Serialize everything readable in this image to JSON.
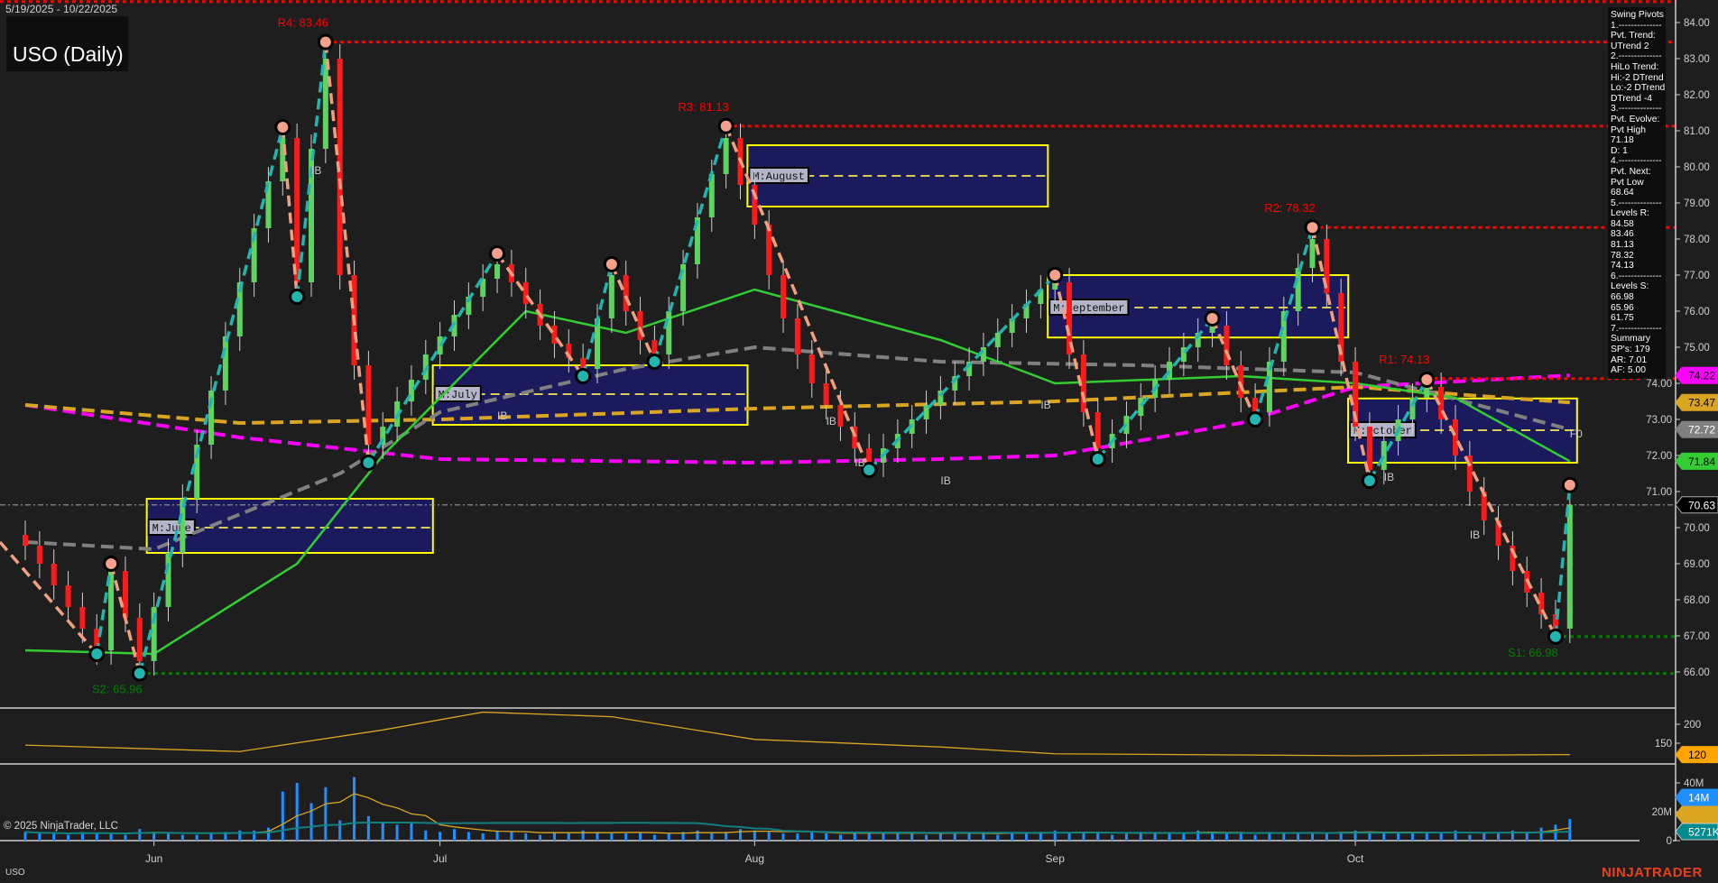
{
  "header": {
    "date_range": "5/19/2025 - 10/22/2025",
    "title": "USO (Daily)"
  },
  "footer": {
    "copyright": "© 2025 NinjaTrader, LLC",
    "symbol": "USO",
    "logo": "NINJATRADER"
  },
  "info_panel": {
    "lines": [
      "Swing Pivots",
      "1.--------------",
      "Pvt. Trend:",
      "UTrend 2",
      "2.--------------",
      "HiLo Trend:",
      "Hi:-2 DTrend",
      "Lo:-2 DTrend",
      "DTrend -4",
      "3.--------------",
      "Pvt. Evolve:",
      "Pvt High",
      "71.18",
      "D: 1",
      "4.--------------",
      "Pvt. Next:",
      "Pvt Low",
      "68.64",
      "5.--------------",
      "Levels R:",
      "84.58",
      "83.46",
      "81.13",
      "78.32",
      "74.13",
      "6.--------------",
      "Levels S:",
      "66.98",
      "65.96",
      "61.75",
      "7.--------------",
      "Summary",
      "SP's: 179",
      "AR: 7.01",
      "AF: 5.00"
    ]
  },
  "chart_data": {
    "type": "candlestick",
    "start_date": "2025-05-19",
    "end_date": "2025-10-22",
    "closes": [
      69.5,
      69.0,
      68.4,
      67.8,
      67.2,
      66.6,
      68.8,
      67.5,
      66.3,
      67.8,
      69.3,
      70.8,
      72.3,
      73.8,
      75.3,
      76.8,
      78.3,
      79.6,
      80.8,
      76.8,
      80.5,
      83.0,
      77.0,
      74.5,
      72.3,
      72.8,
      73.5,
      74.1,
      74.8,
      75.3,
      75.9,
      76.4,
      76.9,
      77.3,
      76.8,
      76.2,
      75.6,
      75.1,
      74.7,
      74.4,
      75.8,
      77.0,
      76.0,
      75.2,
      74.8,
      76.0,
      77.3,
      78.6,
      79.8,
      80.8,
      79.5,
      78.4,
      77.0,
      75.8,
      74.8,
      74.0,
      73.4,
      72.8,
      72.2,
      71.8,
      72.2,
      72.6,
      73.0,
      73.4,
      73.8,
      74.2,
      74.6,
      75.0,
      75.4,
      75.8,
      76.2,
      76.6,
      76.8,
      74.8,
      73.2,
      72.2,
      72.6,
      73.1,
      73.6,
      74.1,
      74.6,
      75.0,
      75.4,
      75.6,
      74.5,
      73.6,
      73.2,
      74.6,
      76.0,
      77.2,
      78.0,
      76.5,
      74.6,
      72.8,
      71.6,
      72.4,
      73.0,
      73.6,
      73.9,
      73.0,
      72.0,
      71.0,
      70.2,
      69.5,
      68.8,
      68.2,
      67.6,
      67.2,
      70.63
    ],
    "volume_millions": [
      6,
      5,
      5,
      4,
      6,
      5,
      5,
      4,
      8,
      6,
      5,
      4,
      4,
      5,
      6,
      7,
      7,
      9,
      34,
      40,
      26,
      37,
      14,
      44,
      17,
      13,
      11,
      12,
      7,
      6,
      8,
      6,
      5,
      7,
      6,
      5,
      4,
      6,
      5,
      7,
      6,
      5,
      5,
      6,
      4,
      5,
      6,
      7,
      5,
      6,
      8,
      7,
      6,
      5,
      5,
      6,
      5,
      4,
      6,
      5,
      5,
      6,
      5,
      4,
      5,
      6,
      5,
      5,
      4,
      6,
      5,
      6,
      7,
      5,
      6,
      5,
      4,
      5,
      6,
      5,
      6,
      5,
      7,
      6,
      5,
      5,
      4,
      6,
      5,
      6,
      6,
      5,
      6,
      7,
      6,
      5,
      6,
      5,
      6,
      5,
      7,
      4,
      5,
      6,
      7,
      5,
      9,
      11,
      15
    ],
    "y_axis": {
      "min": 65,
      "max": 84.6,
      "ticks": [
        "84.00",
        "83.00",
        "82.00",
        "81.00",
        "80.00",
        "79.00",
        "78.00",
        "77.00",
        "76.00",
        "75.00",
        "74.00",
        "73.00",
        "72.00",
        "71.00",
        "70.00",
        "69.00",
        "68.00",
        "67.00",
        "66.00"
      ]
    },
    "x_axis": {
      "ticks": [
        {
          "label": "Jun",
          "date": "2025-06-02"
        },
        {
          "label": "Jul",
          "date": "2025-07-01"
        },
        {
          "label": "Aug",
          "date": "2025-08-01"
        },
        {
          "label": "Sep",
          "date": "2025-09-02"
        },
        {
          "label": "Oct",
          "date": "2025-10-01"
        }
      ]
    },
    "last_price": {
      "value": "70.63",
      "color": "#000000"
    },
    "moving_averages": [
      {
        "color": "#ff00ff",
        "style": "dashed",
        "tag": "74.22",
        "points": [
          [
            "2025-05-19",
            73.4
          ],
          [
            "2025-06-10",
            72.5
          ],
          [
            "2025-07-01",
            71.9
          ],
          [
            "2025-08-01",
            71.8
          ],
          [
            "2025-08-20",
            71.9
          ],
          [
            "2025-09-02",
            72.0
          ],
          [
            "2025-09-19",
            72.9
          ],
          [
            "2025-10-01",
            73.9
          ],
          [
            "2025-10-22",
            74.22
          ]
        ]
      },
      {
        "color": "#daa520",
        "style": "dashed",
        "tag": "73.47",
        "points": [
          [
            "2025-05-19",
            73.4
          ],
          [
            "2025-06-10",
            72.9
          ],
          [
            "2025-07-01",
            73.0
          ],
          [
            "2025-08-01",
            73.3
          ],
          [
            "2025-09-02",
            73.5
          ],
          [
            "2025-10-01",
            73.9
          ],
          [
            "2025-10-22",
            73.47
          ]
        ]
      },
      {
        "color": "#808080",
        "style": "dashed",
        "tag": "72.72",
        "points": [
          [
            "2025-05-19",
            69.6
          ],
          [
            "2025-06-02",
            69.4
          ],
          [
            "2025-06-20",
            71.5
          ],
          [
            "2025-07-01",
            73.2
          ],
          [
            "2025-07-21",
            74.4
          ],
          [
            "2025-08-01",
            75.0
          ],
          [
            "2025-08-20",
            74.6
          ],
          [
            "2025-09-10",
            74.5
          ],
          [
            "2025-10-01",
            74.3
          ],
          [
            "2025-10-22",
            72.72
          ]
        ]
      },
      {
        "color": "#32cd32",
        "style": "solid",
        "tag": "71.84",
        "points": [
          [
            "2025-05-19",
            66.6
          ],
          [
            "2025-06-02",
            66.5
          ],
          [
            "2025-06-16",
            69.0
          ],
          [
            "2025-06-25",
            72.0
          ],
          [
            "2025-07-10",
            76.0
          ],
          [
            "2025-07-21",
            75.4
          ],
          [
            "2025-08-01",
            76.6
          ],
          [
            "2025-08-20",
            75.2
          ],
          [
            "2025-09-02",
            74.0
          ],
          [
            "2025-09-19",
            74.2
          ],
          [
            "2025-10-01",
            74.0
          ],
          [
            "2025-10-10",
            73.6
          ],
          [
            "2025-10-22",
            71.84
          ]
        ]
      }
    ],
    "swing_pivots": [
      {
        "date": "2025-05-19",
        "price": 69.6,
        "type": "start"
      },
      {
        "date": "2025-05-27",
        "price": 66.5,
        "type": "low"
      },
      {
        "date": "2025-05-28",
        "price": 69.0,
        "type": "high"
      },
      {
        "date": "2025-05-30",
        "price": 65.96,
        "type": "low"
      },
      {
        "date": "2025-06-13",
        "price": 81.1,
        "type": "high"
      },
      {
        "date": "2025-06-16",
        "price": 76.4,
        "type": "low"
      },
      {
        "date": "2025-06-18",
        "price": 83.46,
        "type": "high"
      },
      {
        "date": "2025-06-24",
        "price": 71.8,
        "type": "low"
      },
      {
        "date": "2025-07-08",
        "price": 77.6,
        "type": "high"
      },
      {
        "date": "2025-07-16",
        "price": 74.2,
        "type": "low"
      },
      {
        "date": "2025-07-18",
        "price": 77.3,
        "type": "high"
      },
      {
        "date": "2025-07-23",
        "price": 74.6,
        "type": "low"
      },
      {
        "date": "2025-07-30",
        "price": 81.13,
        "type": "high"
      },
      {
        "date": "2025-08-13",
        "price": 71.6,
        "type": "low"
      },
      {
        "date": "2025-09-02",
        "price": 77.0,
        "type": "high"
      },
      {
        "date": "2025-09-05",
        "price": 71.9,
        "type": "low"
      },
      {
        "date": "2025-09-17",
        "price": 75.8,
        "type": "high"
      },
      {
        "date": "2025-09-22",
        "price": 73.0,
        "type": "low"
      },
      {
        "date": "2025-09-26",
        "price": 78.32,
        "type": "high"
      },
      {
        "date": "2025-10-02",
        "price": 71.3,
        "type": "low"
      },
      {
        "date": "2025-10-08",
        "price": 74.1,
        "type": "high"
      },
      {
        "date": "2025-10-21",
        "price": 66.98,
        "type": "low"
      },
      {
        "date": "2025-10-22",
        "price": 71.18,
        "type": "high"
      }
    ],
    "levels": [
      {
        "label": "",
        "value": 84.58,
        "from": "2025-05-19",
        "color": "#ff0000",
        "side": "above"
      },
      {
        "label": "R4: 83.46",
        "value": 83.46,
        "from": "2025-06-18",
        "color": "#ff0000",
        "side": "above"
      },
      {
        "label": "R3: 81.13",
        "value": 81.13,
        "from": "2025-07-30",
        "color": "#ff0000",
        "side": "above"
      },
      {
        "label": "R2: 78.32",
        "value": 78.32,
        "from": "2025-09-26",
        "color": "#ff0000",
        "side": "above"
      },
      {
        "label": "R1: 74.13",
        "value": 74.13,
        "from": "2025-10-08",
        "color": "#ff0000",
        "side": "above"
      },
      {
        "label": "S1: 66.98",
        "value": 66.98,
        "from": "2025-10-21",
        "color": "#008000",
        "side": "below"
      },
      {
        "label": "S2: 65.96",
        "value": 65.96,
        "from": "2025-05-30",
        "color": "#008000",
        "side": "below"
      }
    ],
    "monthly_boxes": [
      {
        "label": "M:June",
        "start": "2025-06-02",
        "end": "2025-06-30",
        "high": 70.8,
        "low": 69.3,
        "mid": 70.0
      },
      {
        "label": "M:July",
        "start": "2025-07-01",
        "end": "2025-07-31",
        "high": 74.5,
        "low": 72.85,
        "mid": 73.7
      },
      {
        "label": "M:August",
        "start": "2025-08-01",
        "end": "2025-08-29",
        "high": 80.6,
        "low": 78.9,
        "mid": 79.75
      },
      {
        "label": "M:September",
        "start": "2025-09-02",
        "end": "2025-09-30",
        "high": 77.0,
        "low": 75.27,
        "mid": 76.1
      },
      {
        "label": "M:October",
        "start": "2025-10-01",
        "end": "2025-10-22",
        "high": 73.58,
        "low": 71.8,
        "mid": 72.7
      }
    ],
    "annotations": [
      {
        "text": "IB",
        "date": "2025-06-17",
        "price": 79.8
      },
      {
        "text": "IB",
        "date": "2025-07-08",
        "price": 73.0
      },
      {
        "text": "IB",
        "date": "2025-08-08",
        "price": 72.85
      },
      {
        "text": "IB",
        "date": "2025-08-12",
        "price": 71.7
      },
      {
        "text": "IB",
        "date": "2025-08-20",
        "price": 71.2
      },
      {
        "text": "IB",
        "date": "2025-08-29",
        "price": 73.3
      },
      {
        "text": "IB",
        "date": "2025-10-03",
        "price": 71.3
      },
      {
        "text": "IB",
        "date": "2025-10-13",
        "price": 69.7
      },
      {
        "text": "F0",
        "date": "2025-10-22",
        "price": 72.5
      }
    ],
    "oscillator": {
      "color": "#daa520",
      "tag": "120",
      "ticks": [
        "200",
        "150"
      ],
      "points": [
        [
          "2025-05-19",
          145
        ],
        [
          "2025-06-10",
          128
        ],
        [
          "2025-06-25",
          185
        ],
        [
          "2025-07-07",
          232
        ],
        [
          "2025-07-18",
          220
        ],
        [
          "2025-08-01",
          160
        ],
        [
          "2025-08-20",
          140
        ],
        [
          "2025-09-02",
          122
        ],
        [
          "2025-10-01",
          117
        ],
        [
          "2025-10-22",
          120
        ]
      ]
    },
    "volume_axis": {
      "ticks": [
        "40M",
        "20M",
        "0"
      ],
      "tags": [
        {
          "text": "14M",
          "color": "#1e90ff"
        },
        {
          "text": "",
          "color": "#daa520"
        },
        {
          "text": "5271K",
          "color": "#008b8b"
        }
      ]
    }
  }
}
